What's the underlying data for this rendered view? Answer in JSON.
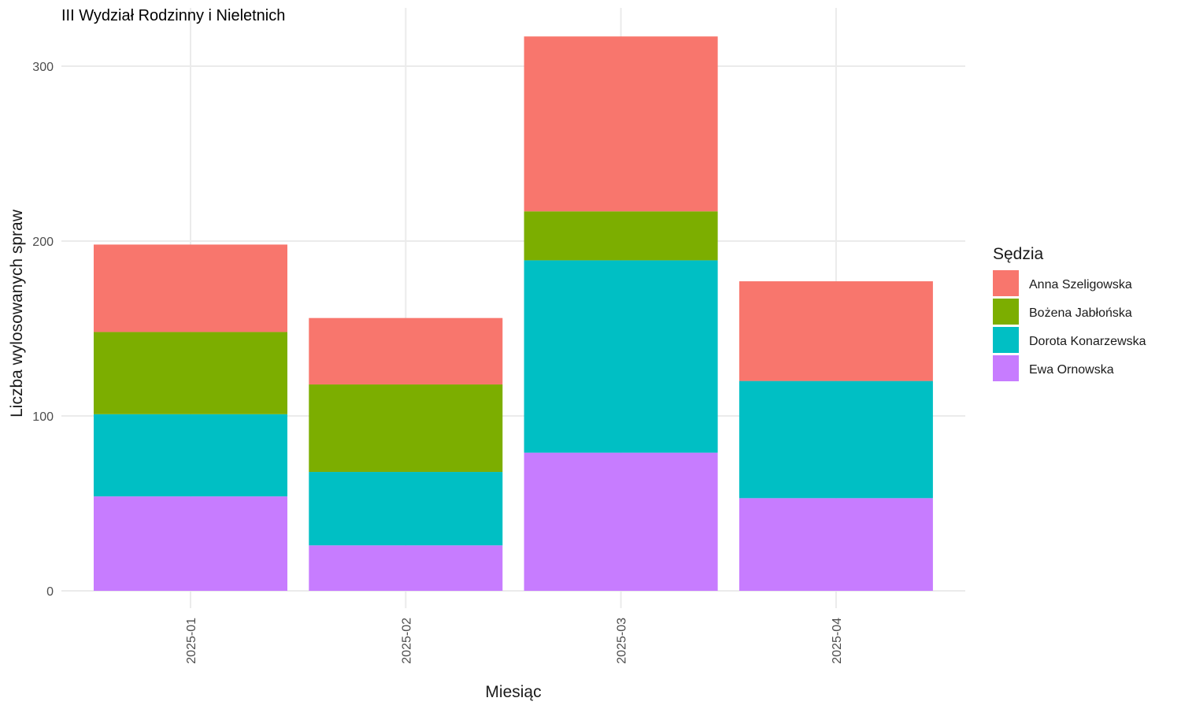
{
  "chart_data": {
    "type": "bar",
    "stacked": true,
    "title": "III Wydział Rodzinny i Nieletnich",
    "xlabel": "Miesiąc",
    "ylabel": "Liczba wylosowanych spraw",
    "ylim": [
      -12,
      330
    ],
    "y_ticks": [
      0,
      100,
      200,
      300
    ],
    "grid": true,
    "legend_title": "Sędzia",
    "legend_position": "right",
    "categories": [
      "2025-01",
      "2025-02",
      "2025-03",
      "2025-04"
    ],
    "series": [
      {
        "name": "Ewa Ornowska",
        "color": "#C77CFF",
        "values": [
          54,
          26,
          79,
          53
        ]
      },
      {
        "name": "Dorota Konarzewska",
        "color": "#00BFC4",
        "values": [
          47,
          42,
          110,
          67
        ]
      },
      {
        "name": "Bożena Jabłońska",
        "color": "#7CAE00",
        "values": [
          47,
          50,
          28,
          0
        ]
      },
      {
        "name": "Anna Szeligowska",
        "color": "#F8766D",
        "values": [
          50,
          38,
          100,
          57
        ]
      }
    ],
    "legend_order": [
      "Anna Szeligowska",
      "Bożena Jabłońska",
      "Dorota Konarzewska",
      "Ewa Ornowska"
    ]
  }
}
